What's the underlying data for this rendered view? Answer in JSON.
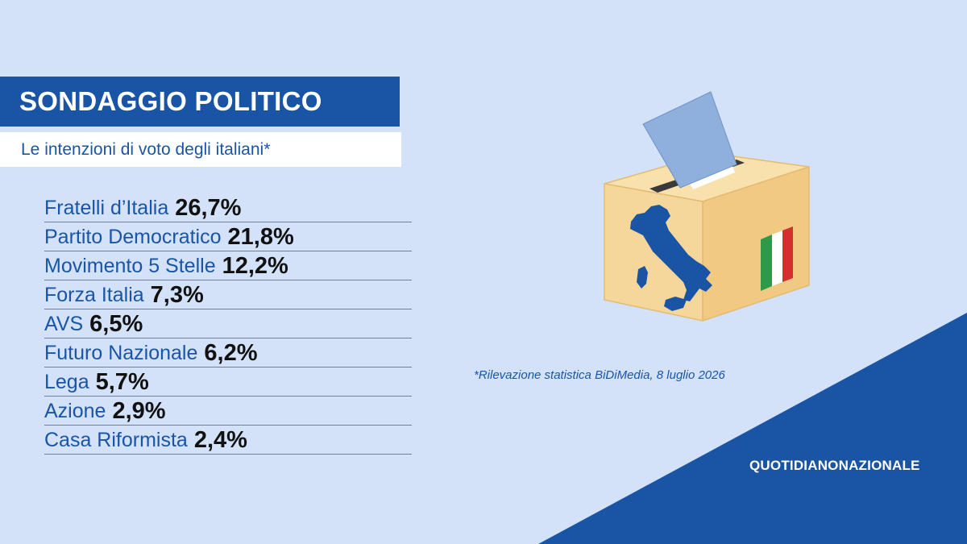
{
  "header": {
    "title": "SONDAGGIO POLITICO",
    "subtitle": "Le intenzioni di voto degli italiani*"
  },
  "chart_data": {
    "type": "table",
    "title": "SONDAGGIO POLITICO",
    "subtitle": "Le intenzioni di voto degli italiani*",
    "unit": "%",
    "categories": [
      "Fratelli d’Italia",
      "Partito Democratico",
      "Movimento 5 Stelle",
      "Forza Italia",
      "AVS",
      "Futuro Nazionale",
      "Lega",
      "Azione",
      "Casa Riformista"
    ],
    "values": [
      26.7,
      21.8,
      12.2,
      7.3,
      6.5,
      6.2,
      5.7,
      2.9,
      2.4
    ],
    "rows": [
      {
        "party": "Fratelli d’Italia",
        "value": "26,7%"
      },
      {
        "party": "Partito Democratico",
        "value": "21,8%"
      },
      {
        "party": "Movimento 5 Stelle",
        "value": "12,2%"
      },
      {
        "party": "Forza Italia",
        "value": "7,3%"
      },
      {
        "party": "AVS",
        "value": "6,5%"
      },
      {
        "party": "Futuro Nazionale",
        "value": "6,2%"
      },
      {
        "party": "Lega",
        "value": "5,7%"
      },
      {
        "party": "Azione",
        "value": "2,9%"
      },
      {
        "party": "Casa Riformista",
        "value": "2,4%"
      }
    ]
  },
  "footnote": "*Rilevazione statistica BiDiMedia, 8 luglio 2026",
  "brand": "QUOTIDIANONAZIONALE",
  "colors": {
    "background": "#d3e2f8",
    "accent_blue": "#1a55a5",
    "text_dark": "#111111",
    "box": "#f6d79b",
    "ballot": "#8fb0dc",
    "flag_green": "#2e9a48",
    "flag_white": "#ffffff",
    "flag_red": "#d32f2f"
  },
  "icons": [
    "ballot-box-icon",
    "italy-map-icon",
    "italian-flag-icon"
  ]
}
